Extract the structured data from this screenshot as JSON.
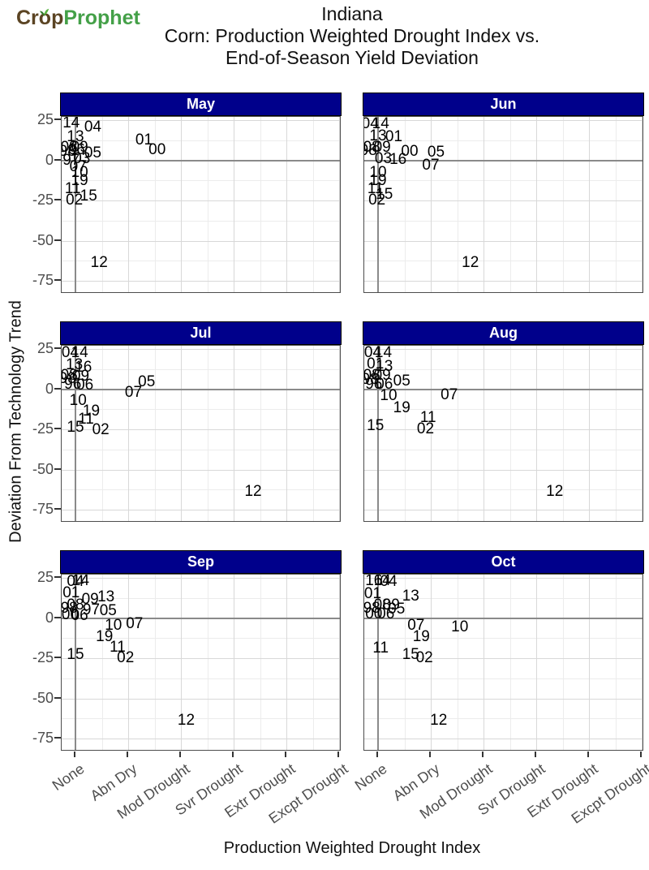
{
  "logo": {
    "part1": "Cr",
    "part2": "o",
    "part3": "p",
    "part4": "Prophet"
  },
  "title": {
    "region": "Indiana",
    "line1": "Corn: Production Weighted Drought Index vs.",
    "line2": "End-of-Season Yield Deviation"
  },
  "chart_data": {
    "type": "scatter",
    "title": "Indiana Corn: Production Weighted Drought Index vs. End-of-Season Yield Deviation",
    "xlabel": "Production Weighted Drought Index",
    "ylabel": "Deviation From Technology Trend",
    "x_categories": [
      "None",
      "Abn Dry",
      "Mod Drought",
      "Svr Drought",
      "Extr Drought",
      "Excpt Drought"
    ],
    "y_ticks": [
      25,
      0,
      -25,
      -50,
      -75
    ],
    "ylim": [
      -83,
      27
    ],
    "grid": "on",
    "legend": "none",
    "strip_color": "#00008B",
    "point_style": "two-digit year text labels",
    "panels": [
      {
        "label": "May",
        "points": [
          {
            "year": "14",
            "x": -0.08,
            "y": 23
          },
          {
            "year": "04",
            "x": 0.33,
            "y": 20.5
          },
          {
            "year": "13",
            "x": 0,
            "y": 14.5
          },
          {
            "year": "08",
            "x": -0.12,
            "y": 8
          },
          {
            "year": "09",
            "x": 0.08,
            "y": 8
          },
          {
            "year": "06",
            "x": 0.02,
            "y": 6.5
          },
          {
            "year": "98",
            "x": -0.15,
            "y": 5.5
          },
          {
            "year": "05",
            "x": 0.33,
            "y": 4.5
          },
          {
            "year": "03",
            "x": 0.12,
            "y": 1
          },
          {
            "year": "97",
            "x": -0.08,
            "y": 0
          },
          {
            "year": "01",
            "x": 1.3,
            "y": 12.5
          },
          {
            "year": "00",
            "x": 1.55,
            "y": 6.5
          },
          {
            "year": "07",
            "x": 0.05,
            "y": -4.5
          },
          {
            "year": "10",
            "x": 0.08,
            "y": -8
          },
          {
            "year": "19",
            "x": 0.08,
            "y": -13
          },
          {
            "year": "11",
            "x": -0.05,
            "y": -18
          },
          {
            "year": "15",
            "x": 0.25,
            "y": -22.5
          },
          {
            "year": "02",
            "x": -0.02,
            "y": -25
          },
          {
            "year": "12",
            "x": 0.45,
            "y": -64
          }
        ]
      },
      {
        "label": "Jun",
        "points": [
          {
            "year": "04",
            "x": -0.15,
            "y": 22.5
          },
          {
            "year": "14",
            "x": 0.05,
            "y": 22.5
          },
          {
            "year": "13",
            "x": 0,
            "y": 15
          },
          {
            "year": "01",
            "x": 0.3,
            "y": 14.5
          },
          {
            "year": "08",
            "x": -0.12,
            "y": 8
          },
          {
            "year": "09",
            "x": 0.08,
            "y": 8
          },
          {
            "year": "98",
            "x": -0.18,
            "y": 6
          },
          {
            "year": "00",
            "x": 0.6,
            "y": 5.5
          },
          {
            "year": "05",
            "x": 1.1,
            "y": 5
          },
          {
            "year": "03",
            "x": 0.1,
            "y": 1
          },
          {
            "year": "16",
            "x": 0.38,
            "y": 0.5
          },
          {
            "year": "07",
            "x": 1.0,
            "y": -3.5
          },
          {
            "year": "10",
            "x": 0,
            "y": -8
          },
          {
            "year": "19",
            "x": 0,
            "y": -13
          },
          {
            "year": "11",
            "x": -0.05,
            "y": -18
          },
          {
            "year": "15",
            "x": 0.12,
            "y": -21.5
          },
          {
            "year": "02",
            "x": -0.02,
            "y": -25
          },
          {
            "year": "12",
            "x": 1.75,
            "y": -64
          }
        ]
      },
      {
        "label": "Jul",
        "points": [
          {
            "year": "04",
            "x": -0.1,
            "y": 22.5
          },
          {
            "year": "14",
            "x": 0.08,
            "y": 22.5
          },
          {
            "year": "13",
            "x": -0.02,
            "y": 15
          },
          {
            "year": "16",
            "x": 0.15,
            "y": 13.5
          },
          {
            "year": "08",
            "x": -0.12,
            "y": 8.5
          },
          {
            "year": "09",
            "x": 0.1,
            "y": 8
          },
          {
            "year": "98",
            "x": -0.15,
            "y": 6.5
          },
          {
            "year": "96",
            "x": -0.05,
            "y": 3
          },
          {
            "year": "06",
            "x": 0.18,
            "y": 2.5
          },
          {
            "year": "05",
            "x": 1.35,
            "y": 4.5
          },
          {
            "year": "07",
            "x": 1.1,
            "y": -2.5
          },
          {
            "year": "10",
            "x": 0.05,
            "y": -7.5
          },
          {
            "year": "19",
            "x": 0.3,
            "y": -14
          },
          {
            "year": "11",
            "x": 0.2,
            "y": -19
          },
          {
            "year": "15",
            "x": 0,
            "y": -24
          },
          {
            "year": "02",
            "x": 0.48,
            "y": -25.5
          },
          {
            "year": "12",
            "x": 3.37,
            "y": -64
          }
        ]
      },
      {
        "label": "Aug",
        "points": [
          {
            "year": "04",
            "x": -0.1,
            "y": 22.5
          },
          {
            "year": "14",
            "x": 0.1,
            "y": 22.5
          },
          {
            "year": "01",
            "x": -0.05,
            "y": 15.5
          },
          {
            "year": "13",
            "x": 0.12,
            "y": 14
          },
          {
            "year": "08",
            "x": -0.12,
            "y": 8.5
          },
          {
            "year": "09",
            "x": 0.08,
            "y": 8.5
          },
          {
            "year": "98",
            "x": -0.15,
            "y": 6
          },
          {
            "year": "05",
            "x": 0.45,
            "y": 5
          },
          {
            "year": "96",
            "x": -0.08,
            "y": 3
          },
          {
            "year": "06",
            "x": 0.12,
            "y": 3
          },
          {
            "year": "10",
            "x": 0.2,
            "y": -4.5
          },
          {
            "year": "07",
            "x": 1.35,
            "y": -4
          },
          {
            "year": "19",
            "x": 0.45,
            "y": -12
          },
          {
            "year": "11",
            "x": 0.95,
            "y": -18
          },
          {
            "year": "15",
            "x": -0.05,
            "y": -23
          },
          {
            "year": "02",
            "x": 0.9,
            "y": -25
          },
          {
            "year": "12",
            "x": 3.35,
            "y": -64
          }
        ]
      },
      {
        "label": "Sep",
        "points": [
          {
            "year": "04",
            "x": 0,
            "y": 22.5
          },
          {
            "year": "14",
            "x": 0.1,
            "y": 23
          },
          {
            "year": "01",
            "x": -0.08,
            "y": 15.5
          },
          {
            "year": "09",
            "x": 0.28,
            "y": 11.5
          },
          {
            "year": "13",
            "x": 0.58,
            "y": 13
          },
          {
            "year": "08",
            "x": 0,
            "y": 8
          },
          {
            "year": "98",
            "x": -0.12,
            "y": 6
          },
          {
            "year": "97",
            "x": 0.3,
            "y": 5
          },
          {
            "year": "05",
            "x": 0.62,
            "y": 4.5
          },
          {
            "year": "00",
            "x": -0.1,
            "y": 2
          },
          {
            "year": "06",
            "x": 0.08,
            "y": 1.5
          },
          {
            "year": "10",
            "x": 0.72,
            "y": -5
          },
          {
            "year": "07",
            "x": 1.12,
            "y": -4
          },
          {
            "year": "19",
            "x": 0.55,
            "y": -12
          },
          {
            "year": "11",
            "x": 0.8,
            "y": -18.5
          },
          {
            "year": "15",
            "x": 0,
            "y": -23
          },
          {
            "year": "02",
            "x": 0.95,
            "y": -25
          },
          {
            "year": "12",
            "x": 2.1,
            "y": -64
          }
        ]
      },
      {
        "label": "Oct",
        "points": [
          {
            "year": "16",
            "x": -0.08,
            "y": 23
          },
          {
            "year": "14",
            "x": 0.08,
            "y": 23
          },
          {
            "year": "04",
            "x": 0.2,
            "y": 22.5
          },
          {
            "year": "01",
            "x": -0.1,
            "y": 15
          },
          {
            "year": "13",
            "x": 0.62,
            "y": 13.5
          },
          {
            "year": "08",
            "x": 0.08,
            "y": 8
          },
          {
            "year": "09",
            "x": 0.25,
            "y": 8
          },
          {
            "year": "98",
            "x": -0.12,
            "y": 6
          },
          {
            "year": "05",
            "x": 0.35,
            "y": 5.5
          },
          {
            "year": "00",
            "x": -0.08,
            "y": 2.5
          },
          {
            "year": "06",
            "x": 0.15,
            "y": 2.5
          },
          {
            "year": "07",
            "x": 0.72,
            "y": -5
          },
          {
            "year": "10",
            "x": 1.55,
            "y": -6
          },
          {
            "year": "19",
            "x": 0.82,
            "y": -12
          },
          {
            "year": "11",
            "x": 0.05,
            "y": -19
          },
          {
            "year": "15",
            "x": 0.62,
            "y": -23
          },
          {
            "year": "02",
            "x": 0.88,
            "y": -25
          },
          {
            "year": "12",
            "x": 1.15,
            "y": -64
          }
        ]
      }
    ]
  }
}
